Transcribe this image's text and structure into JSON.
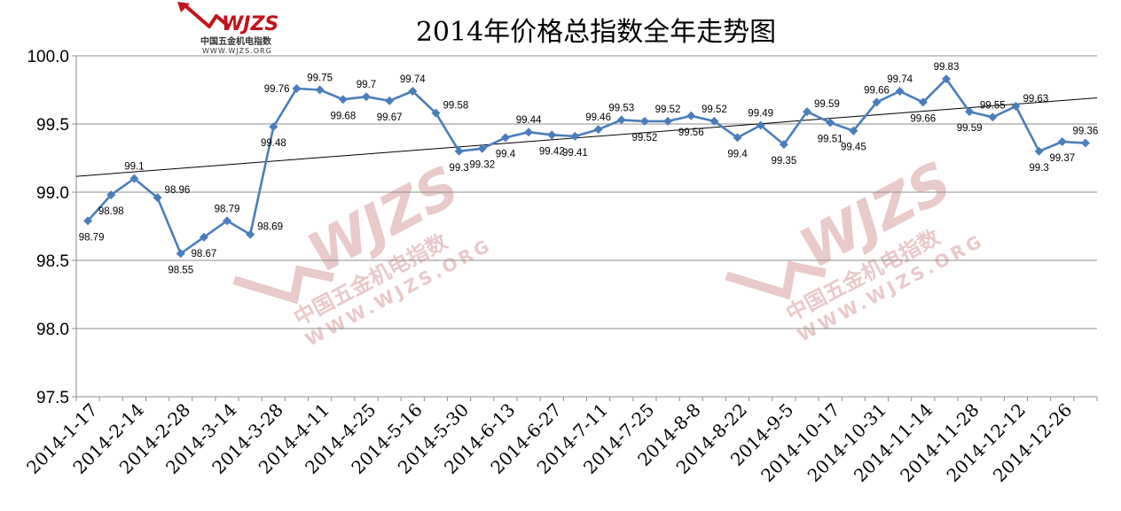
{
  "chart_data": {
    "type": "line",
    "title": "2014年价格总指数全年走势图",
    "ylim": [
      97.5,
      100.0
    ],
    "yticks": [
      "97.5",
      "98.0",
      "98.5",
      "99.0",
      "99.5",
      "100.0"
    ],
    "grid": true,
    "xtick_labels": [
      "2014-1-17",
      "2014-2-14",
      "2014-2-28",
      "2014-3-14",
      "2014-3-28",
      "2014-4-11",
      "2014-4-25",
      "2014-5-16",
      "2014-5-30",
      "2014-6-13",
      "2014-6-27",
      "2014-7-11",
      "2014-7-25",
      "2014-8-8",
      "2014-8-22",
      "2014-9-5",
      "2014-10-17",
      "2014-10-31",
      "2014-11-14",
      "2014-11-28",
      "2014-12-12",
      "2014-12-26"
    ],
    "series": [
      {
        "values": [
          98.79,
          98.98,
          99.1,
          98.96,
          98.55,
          98.67,
          98.79,
          98.69,
          99.48,
          99.76,
          99.75,
          99.68,
          99.7,
          99.67,
          99.74,
          99.58,
          99.3,
          99.32,
          99.4,
          99.44,
          99.42,
          99.41,
          99.46,
          99.53,
          99.52,
          99.52,
          99.56,
          99.52,
          99.4,
          99.49,
          99.35,
          99.59,
          99.51,
          99.45,
          99.66,
          99.74,
          99.66,
          99.83,
          99.59,
          99.55,
          99.63,
          99.3,
          99.37,
          99.36
        ],
        "labels": [
          "98.79",
          "98.98",
          "99.1",
          "98.96",
          "98.55",
          "98.67",
          "98.79",
          "98.69",
          "99.48",
          "99.76",
          "99.75",
          "99.68",
          "99.7",
          "99.67",
          "99.74",
          "99.58",
          "99.3",
          "99.32",
          "99.4",
          "99.44",
          "99.42",
          "99.41",
          "99.46",
          "99.53",
          "99.52",
          "99.52",
          "99.56",
          "99.52",
          "99.4",
          "99.49",
          "99.35",
          "99.59",
          "99.51",
          "99.45",
          "99.66",
          "99.74",
          "99.66",
          "99.83",
          "99.59",
          "99.55",
          "99.63",
          "99.3",
          "99.37",
          "99.36"
        ],
        "label_position": [
          "below",
          "below",
          "above",
          "right",
          "below",
          "below",
          "above",
          "right",
          "below",
          "left",
          "above",
          "below",
          "above",
          "below",
          "above",
          "right",
          "below",
          "below",
          "below",
          "above",
          "below",
          "below",
          "above",
          "above",
          "below",
          "above",
          "below",
          "above",
          "below",
          "above",
          "below",
          "right",
          "below",
          "below",
          "above",
          "above",
          "below",
          "above",
          "below",
          "above",
          "right",
          "below",
          "below",
          "above"
        ],
        "color": "#4a7ebb"
      }
    ],
    "trendline": {
      "type": "linear",
      "color": "#000000"
    }
  },
  "logo": {
    "mark": "WJZS",
    "name": "中国五金机电指数",
    "url": "WWW.WJZS.ORG",
    "color": "#c0141b"
  },
  "watermark": {
    "mark": "WJZS",
    "name": "中国五金机电指数",
    "url": "WWW.WJZS.ORG",
    "color": "#e9c9c9"
  }
}
